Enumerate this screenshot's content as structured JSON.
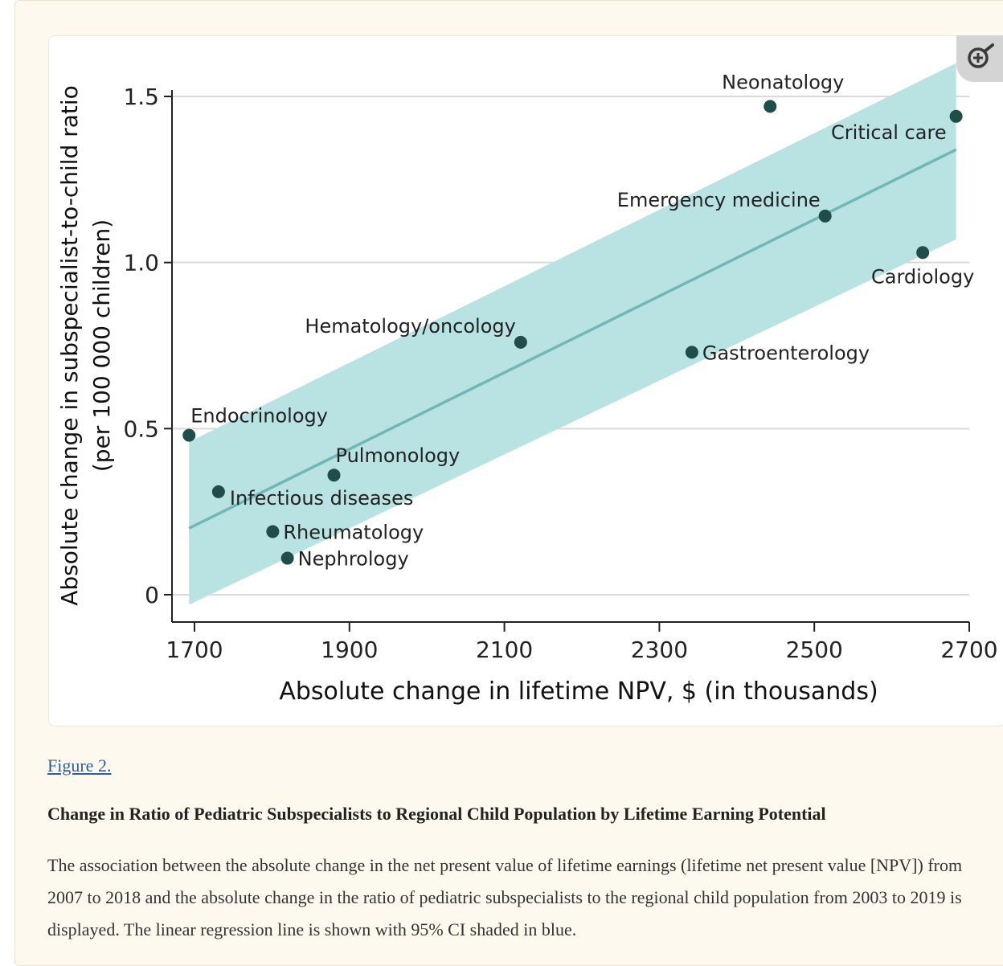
{
  "caption": {
    "link": "Figure 2.",
    "title": "Change in Ratio of Pediatric Subspecialists to Regional Child Population by Lifetime Earning Potential",
    "text": "The association between the absolute change in the net present value of lifetime earnings (lifetime net present value [NPV]) from 2007 to 2018 and the absolute change in the ratio of pediatric subspecialists to the regional child population from 2003 to 2019 is displayed. The linear regression line is shown with 95% CI shaded in blue."
  },
  "icons": {
    "zoom": "zoom-in-icon"
  },
  "colors": {
    "points": "#1f4e4a",
    "band": "#b9e2e2",
    "line": "#6fb8b5",
    "grid": "#d9d9d9",
    "axis": "#222222"
  },
  "chart_data": {
    "type": "scatter",
    "xlabel": "Absolute change in lifetime NPV, $ (in thousands)",
    "ylabel": "Absolute change in subspecialist-to-child ratio",
    "ylabel_sub": "(per 100 000 children)",
    "xlim": [
      1670,
      2700
    ],
    "ylim": [
      0,
      1.5
    ],
    "xticks": [
      1700,
      1900,
      2100,
      2300,
      2500,
      2700
    ],
    "xtick_labels": [
      "1700",
      "1900",
      "2100",
      "2300",
      "2500",
      "2700"
    ],
    "yticks": [
      0,
      0.5,
      1.0,
      1.5
    ],
    "ytick_labels": [
      "0",
      "0.5",
      "1.0",
      "1.5"
    ],
    "grid": "horizontal",
    "points": [
      {
        "name": "Endocrinology",
        "x": 1693,
        "y": 0.48,
        "label_pos": "above-right"
      },
      {
        "name": "Infectious diseases",
        "x": 1731,
        "y": 0.31,
        "label_pos": "right-below"
      },
      {
        "name": "Pulmonology",
        "x": 1880,
        "y": 0.36,
        "label_pos": "above-right"
      },
      {
        "name": "Rheumatology",
        "x": 1801,
        "y": 0.19,
        "label_pos": "right"
      },
      {
        "name": "Nephrology",
        "x": 1820,
        "y": 0.11,
        "label_pos": "right"
      },
      {
        "name": "Hematology/oncology",
        "x": 2121,
        "y": 0.76,
        "label_pos": "above-left"
      },
      {
        "name": "Gastroenterology",
        "x": 2342,
        "y": 0.73,
        "label_pos": "right"
      },
      {
        "name": "Emergency medicine",
        "x": 2514,
        "y": 1.14,
        "label_pos": "above-left"
      },
      {
        "name": "Neonatology",
        "x": 2443,
        "y": 1.47,
        "label_pos": "above"
      },
      {
        "name": "Critical care",
        "x": 2683,
        "y": 1.44,
        "label_pos": "below-left"
      },
      {
        "name": "Cardiology",
        "x": 2640,
        "y": 1.03,
        "label_pos": "below"
      }
    ],
    "regression": {
      "x": [
        1693,
        2683
      ],
      "y": [
        0.2,
        1.34
      ]
    },
    "ci_band": {
      "x": [
        1693,
        2683
      ],
      "upper": [
        0.46,
        1.6
      ],
      "lower": [
        -0.03,
        1.07
      ]
    }
  }
}
